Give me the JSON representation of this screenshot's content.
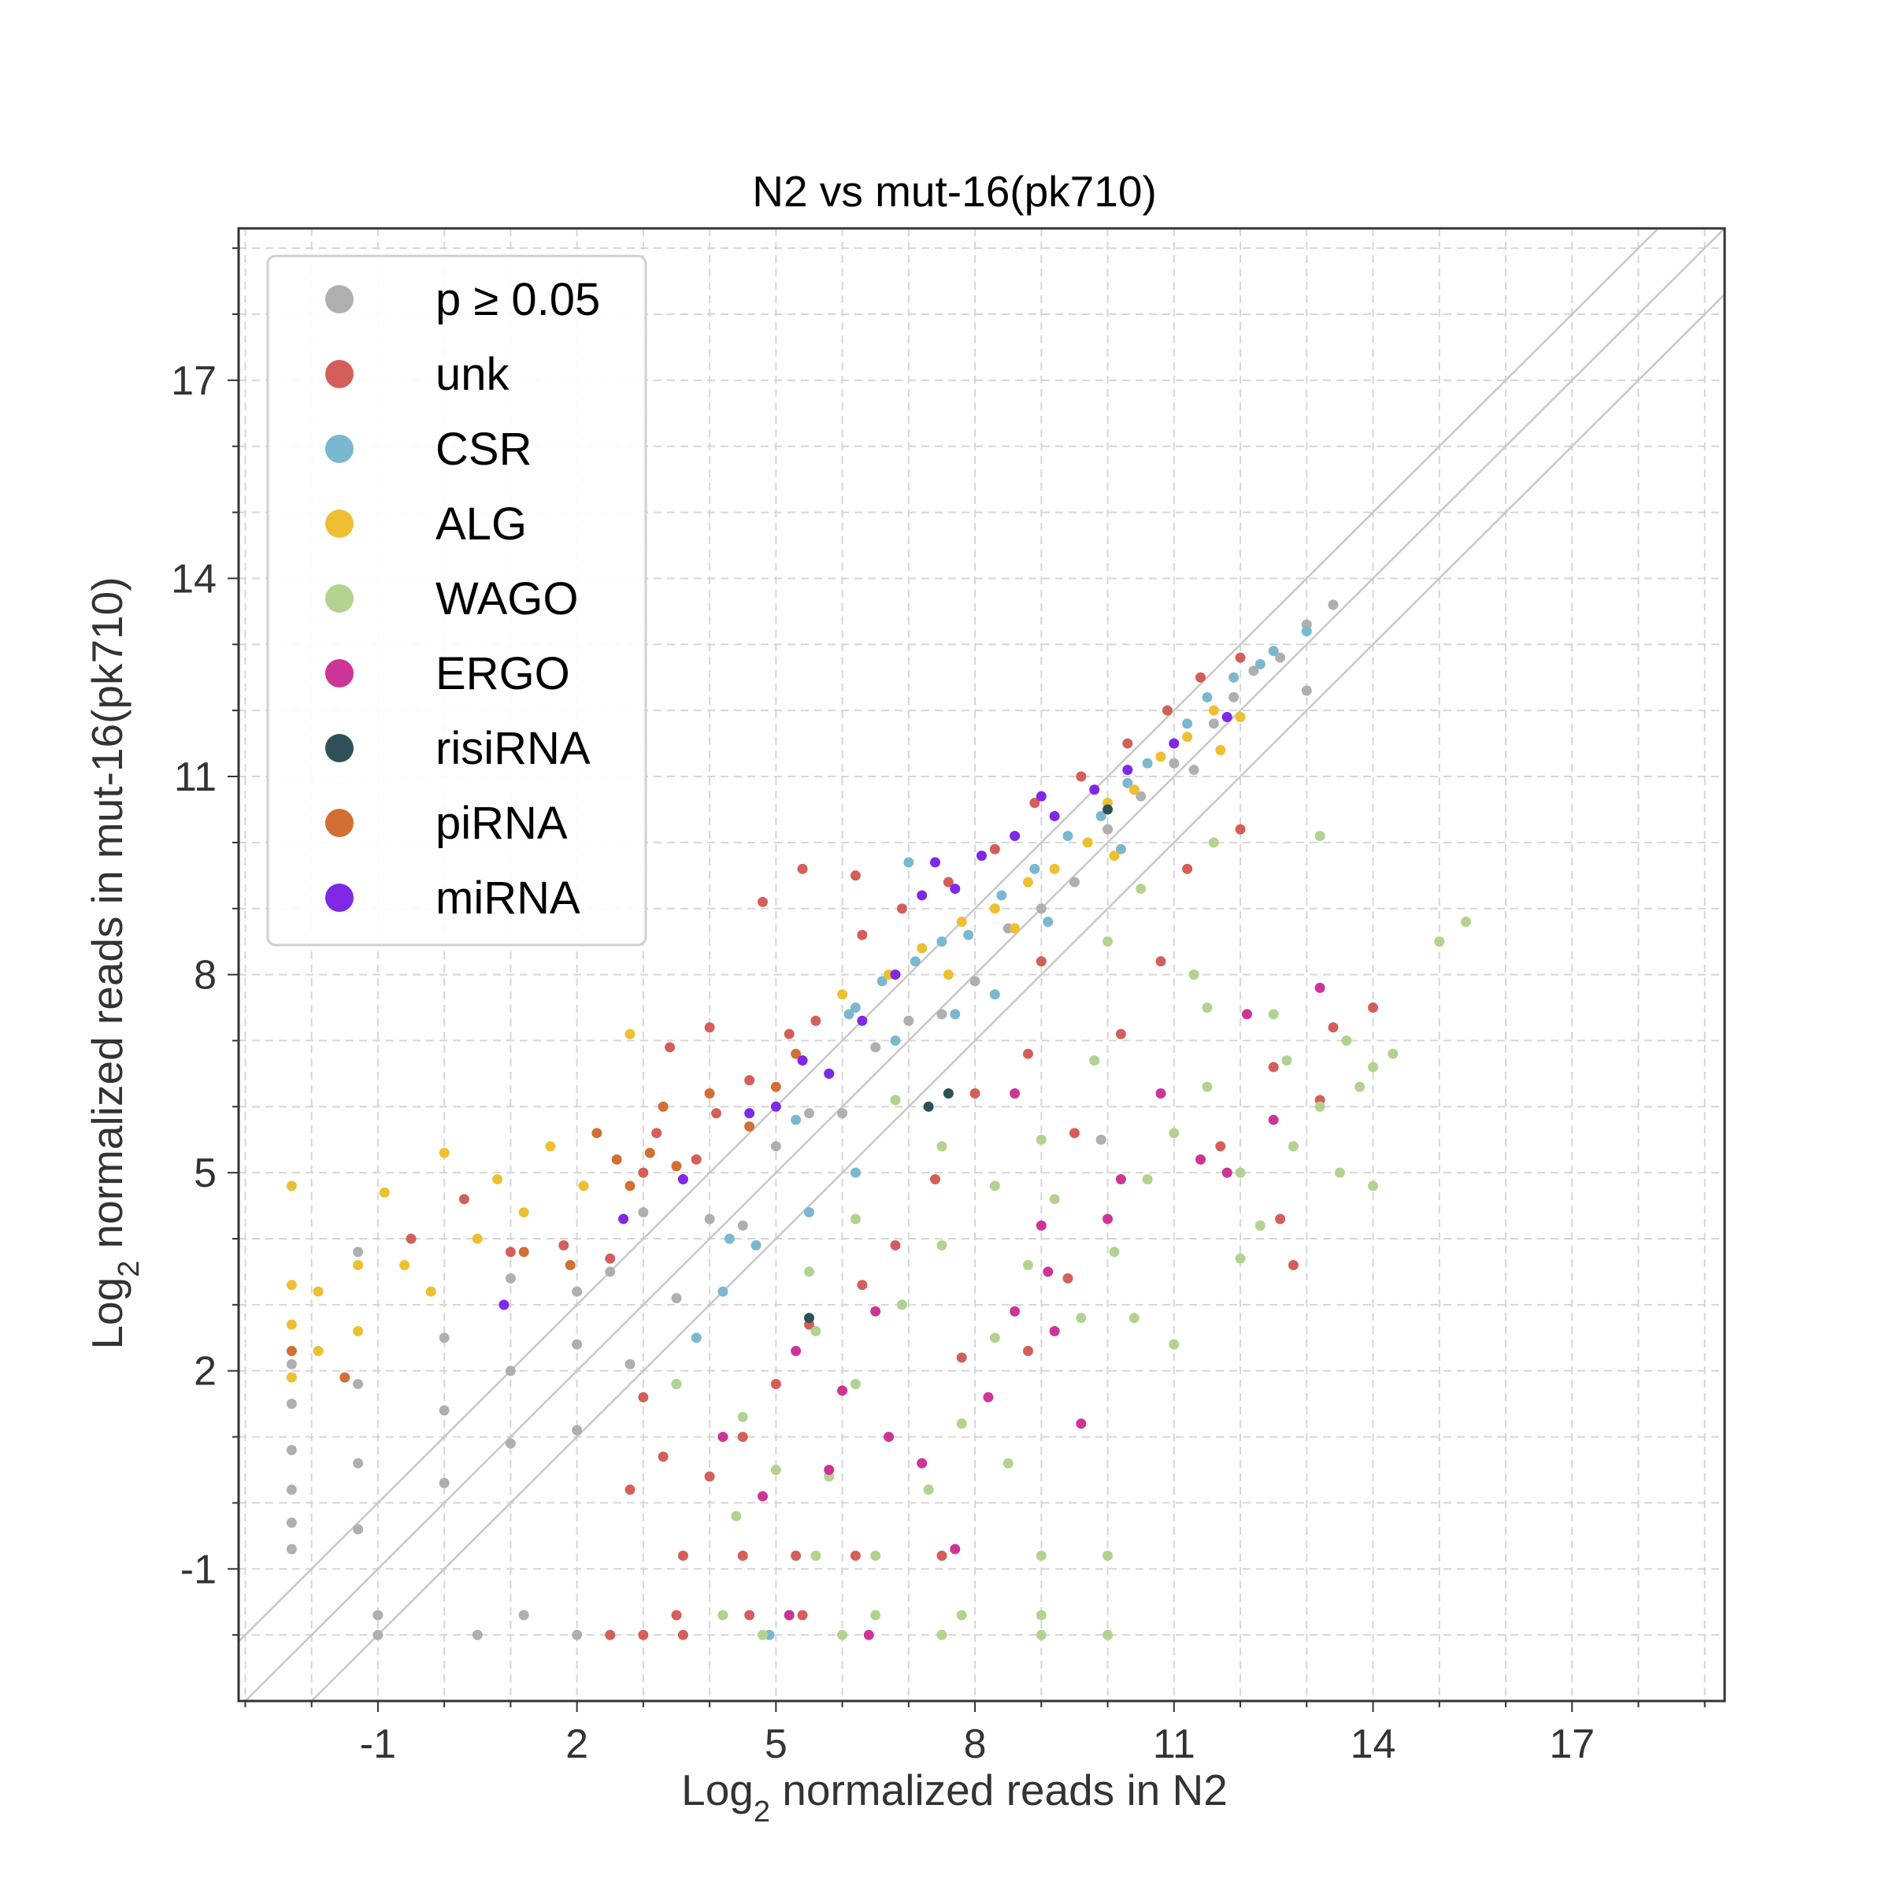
{
  "chart_data": {
    "type": "scatter",
    "title": "N2 vs mut-16(pk710)",
    "xlabel": {
      "prefix": "Log",
      "sub": "2",
      "rest": " normalized reads in N2"
    },
    "ylabel": {
      "prefix": "Log",
      "sub": "2",
      "rest": " normalized reads in mut-16(pk710)"
    },
    "xlim": [
      -3.1,
      19.3
    ],
    "ylim": [
      -3.0,
      19.3
    ],
    "xticks": [
      -1,
      2,
      5,
      8,
      11,
      14,
      17
    ],
    "yticks": [
      -1,
      2,
      5,
      8,
      11,
      14,
      17
    ],
    "grid": true,
    "grid_style": "dashed",
    "minor_ticks": true,
    "legend_position": "upper-left",
    "reference_lines": [
      {
        "slope": 1,
        "intercept": 0
      },
      {
        "slope": 1,
        "intercept": 1
      },
      {
        "slope": 1,
        "intercept": -1
      }
    ],
    "series": [
      {
        "name": "p ≥ 0.05",
        "color": "#afafaf"
      },
      {
        "name": "unk",
        "color": "#d45f5a"
      },
      {
        "name": "CSR",
        "color": "#7ab8cf"
      },
      {
        "name": "ALG",
        "color": "#eebf33"
      },
      {
        "name": "WAGO",
        "color": "#b2d38f"
      },
      {
        "name": "ERGO",
        "color": "#cc3595"
      },
      {
        "name": "risiRNA",
        "color": "#2e5157"
      },
      {
        "name": "piRNA",
        "color": "#d26f34"
      },
      {
        "name": "miRNA",
        "color": "#7f28e6"
      }
    ],
    "points": {
      "p ≥ 0.05": [
        [
          -2.3,
          2.1
        ],
        [
          -2.3,
          1.5
        ],
        [
          -2.3,
          0.8
        ],
        [
          -2.3,
          0.2
        ],
        [
          -2.3,
          -0.3
        ],
        [
          -2.3,
          -0.7
        ],
        [
          -1.3,
          3.8
        ],
        [
          -1.3,
          1.8
        ],
        [
          -1.3,
          0.6
        ],
        [
          -1.3,
          -0.4
        ],
        [
          0.0,
          2.5
        ],
        [
          0.0,
          1.4
        ],
        [
          0.0,
          0.3
        ],
        [
          1.0,
          3.4
        ],
        [
          1.0,
          2.0
        ],
        [
          1.0,
          0.9
        ],
        [
          2.0,
          3.2
        ],
        [
          2.0,
          2.4
        ],
        [
          2.0,
          1.1
        ],
        [
          2.5,
          3.5
        ],
        [
          2.8,
          2.1
        ],
        [
          3.0,
          4.4
        ],
        [
          3.5,
          3.1
        ],
        [
          4.0,
          4.3
        ],
        [
          4.5,
          4.2
        ],
        [
          5.0,
          5.4
        ],
        [
          5.5,
          5.9
        ],
        [
          6.0,
          5.9
        ],
        [
          6.5,
          6.9
        ],
        [
          7.0,
          7.3
        ],
        [
          7.5,
          7.4
        ],
        [
          8.0,
          7.9
        ],
        [
          8.5,
          8.7
        ],
        [
          9.0,
          9.0
        ],
        [
          9.5,
          9.4
        ],
        [
          10.0,
          10.2
        ],
        [
          10.5,
          10.7
        ],
        [
          11.0,
          11.2
        ],
        [
          11.3,
          11.1
        ],
        [
          11.6,
          11.8
        ],
        [
          11.9,
          12.2
        ],
        [
          12.2,
          12.6
        ],
        [
          12.6,
          12.8
        ],
        [
          13.0,
          13.3
        ],
        [
          13.4,
          13.6
        ],
        [
          13.0,
          12.3
        ],
        [
          9.9,
          5.5
        ],
        [
          -1.0,
          -2.0
        ],
        [
          0.5,
          -2.0
        ],
        [
          2.0,
          -2.0
        ],
        [
          -1.0,
          -1.7
        ],
        [
          1.2,
          -1.7
        ]
      ],
      "unk": [
        [
          -0.5,
          4.0
        ],
        [
          0.3,
          4.6
        ],
        [
          1.0,
          3.8
        ],
        [
          1.8,
          3.9
        ],
        [
          2.5,
          3.7
        ],
        [
          3.0,
          5.0
        ],
        [
          3.2,
          5.6
        ],
        [
          3.8,
          5.2
        ],
        [
          4.1,
          5.9
        ],
        [
          4.6,
          6.4
        ],
        [
          5.2,
          7.1
        ],
        [
          5.6,
          7.3
        ],
        [
          6.3,
          8.6
        ],
        [
          6.9,
          9.0
        ],
        [
          7.6,
          9.4
        ],
        [
          8.3,
          9.9
        ],
        [
          8.9,
          10.6
        ],
        [
          9.6,
          11.0
        ],
        [
          10.3,
          11.5
        ],
        [
          10.9,
          12.0
        ],
        [
          11.4,
          12.5
        ],
        [
          12.0,
          12.8
        ],
        [
          5.4,
          9.6
        ],
        [
          4.8,
          9.1
        ],
        [
          6.2,
          9.5
        ],
        [
          4.0,
          7.2
        ],
        [
          3.4,
          6.9
        ],
        [
          6.3,
          3.3
        ],
        [
          5.5,
          2.7
        ],
        [
          5.0,
          1.8
        ],
        [
          4.5,
          1.0
        ],
        [
          4.0,
          0.4
        ],
        [
          3.3,
          0.7
        ],
        [
          3.0,
          1.6
        ],
        [
          2.8,
          0.2
        ],
        [
          3.6,
          -0.8
        ],
        [
          4.5,
          -0.8
        ],
        [
          5.3,
          -0.8
        ],
        [
          6.2,
          -0.8
        ],
        [
          7.5,
          -0.8
        ],
        [
          3.0,
          -2.0
        ],
        [
          3.6,
          -2.0
        ],
        [
          2.5,
          -2.0
        ],
        [
          3.5,
          -1.7
        ],
        [
          4.6,
          -1.7
        ],
        [
          5.4,
          -1.7
        ],
        [
          8.0,
          6.2
        ],
        [
          8.8,
          6.8
        ],
        [
          9.0,
          8.2
        ],
        [
          9.5,
          5.6
        ],
        [
          10.2,
          7.1
        ],
        [
          10.8,
          8.2
        ],
        [
          11.2,
          9.6
        ],
        [
          12.0,
          10.2
        ],
        [
          12.5,
          6.6
        ],
        [
          13.4,
          7.2
        ],
        [
          14.0,
          7.5
        ],
        [
          13.2,
          6.1
        ],
        [
          11.7,
          5.4
        ],
        [
          12.6,
          4.3
        ],
        [
          12.8,
          3.6
        ],
        [
          7.4,
          4.9
        ],
        [
          6.8,
          3.9
        ],
        [
          7.8,
          2.2
        ],
        [
          8.8,
          2.3
        ],
        [
          9.4,
          3.4
        ]
      ],
      "CSR": [
        [
          5.3,
          5.8
        ],
        [
          5.8,
          6.5
        ],
        [
          6.1,
          7.4
        ],
        [
          6.6,
          7.9
        ],
        [
          7.1,
          8.2
        ],
        [
          7.5,
          8.5
        ],
        [
          7.9,
          8.6
        ],
        [
          8.4,
          9.2
        ],
        [
          8.9,
          9.6
        ],
        [
          9.4,
          10.1
        ],
        [
          9.9,
          10.4
        ],
        [
          10.3,
          10.9
        ],
        [
          10.6,
          11.2
        ],
        [
          11.0,
          11.5
        ],
        [
          11.2,
          11.8
        ],
        [
          11.5,
          12.2
        ],
        [
          11.9,
          12.5
        ],
        [
          12.3,
          12.7
        ],
        [
          12.5,
          12.9
        ],
        [
          13.0,
          13.2
        ],
        [
          6.8,
          7.0
        ],
        [
          7.7,
          7.4
        ],
        [
          8.3,
          7.7
        ],
        [
          9.1,
          8.8
        ],
        [
          10.2,
          9.9
        ],
        [
          6.2,
          5.0
        ],
        [
          5.5,
          4.4
        ],
        [
          4.7,
          3.9
        ],
        [
          4.2,
          3.2
        ],
        [
          3.8,
          2.5
        ],
        [
          3.5,
          1.8
        ],
        [
          4.3,
          4.0
        ],
        [
          7.0,
          9.7
        ],
        [
          6.2,
          7.5
        ],
        [
          4.9,
          -2.0
        ]
      ],
      "ALG": [
        [
          -2.3,
          4.8
        ],
        [
          -2.3,
          3.3
        ],
        [
          -2.3,
          2.7
        ],
        [
          -2.3,
          1.9
        ],
        [
          -1.9,
          2.3
        ],
        [
          -1.9,
          3.2
        ],
        [
          -1.3,
          3.6
        ],
        [
          -1.3,
          2.6
        ],
        [
          -0.9,
          4.7
        ],
        [
          -0.6,
          3.6
        ],
        [
          -0.2,
          3.2
        ],
        [
          0.0,
          5.3
        ],
        [
          0.5,
          4.0
        ],
        [
          0.8,
          4.9
        ],
        [
          1.2,
          4.4
        ],
        [
          1.6,
          5.4
        ],
        [
          2.1,
          4.8
        ],
        [
          2.8,
          7.1
        ],
        [
          6.0,
          7.7
        ],
        [
          6.7,
          8.0
        ],
        [
          7.2,
          8.4
        ],
        [
          7.8,
          8.8
        ],
        [
          8.3,
          9.0
        ],
        [
          8.8,
          9.4
        ],
        [
          9.2,
          9.6
        ],
        [
          9.7,
          10.0
        ],
        [
          10.0,
          10.6
        ],
        [
          10.4,
          10.8
        ],
        [
          10.8,
          11.3
        ],
        [
          11.2,
          11.6
        ],
        [
          11.6,
          12.0
        ],
        [
          12.0,
          11.9
        ],
        [
          7.6,
          8.0
        ],
        [
          8.6,
          8.7
        ],
        [
          10.1,
          9.8
        ],
        [
          11.7,
          11.4
        ]
      ],
      "WAGO": [
        [
          3.5,
          1.8
        ],
        [
          4.5,
          1.3
        ],
        [
          5.0,
          0.5
        ],
        [
          5.6,
          2.6
        ],
        [
          6.2,
          1.8
        ],
        [
          6.9,
          3.0
        ],
        [
          7.5,
          3.9
        ],
        [
          7.8,
          1.2
        ],
        [
          8.3,
          2.5
        ],
        [
          8.8,
          3.6
        ],
        [
          9.2,
          4.6
        ],
        [
          9.6,
          2.8
        ],
        [
          10.1,
          3.8
        ],
        [
          10.6,
          4.9
        ],
        [
          11.0,
          5.6
        ],
        [
          11.5,
          6.3
        ],
        [
          12.0,
          5.0
        ],
        [
          12.3,
          4.2
        ],
        [
          12.7,
          6.7
        ],
        [
          13.2,
          6.0
        ],
        [
          13.6,
          7.0
        ],
        [
          14.0,
          6.6
        ],
        [
          14.3,
          6.8
        ],
        [
          15.0,
          8.5
        ],
        [
          15.4,
          8.8
        ],
        [
          12.8,
          5.4
        ],
        [
          13.8,
          6.3
        ],
        [
          14.0,
          4.8
        ],
        [
          13.5,
          5.0
        ],
        [
          10.5,
          9.3
        ],
        [
          10.0,
          8.5
        ],
        [
          11.3,
          8.0
        ],
        [
          9.0,
          5.5
        ],
        [
          8.3,
          4.8
        ],
        [
          7.5,
          5.4
        ],
        [
          6.8,
          6.1
        ],
        [
          6.2,
          4.3
        ],
        [
          5.5,
          3.5
        ],
        [
          4.4,
          -0.2
        ],
        [
          5.8,
          0.4
        ],
        [
          7.3,
          0.2
        ],
        [
          8.5,
          0.6
        ],
        [
          9.0,
          -0.8
        ],
        [
          10.0,
          -0.8
        ],
        [
          5.6,
          -0.8
        ],
        [
          6.5,
          -0.8
        ],
        [
          4.2,
          -1.7
        ],
        [
          5.2,
          -1.7
        ],
        [
          6.5,
          -1.7
        ],
        [
          7.8,
          -1.7
        ],
        [
          9.0,
          -1.7
        ],
        [
          10.0,
          -2.0
        ],
        [
          9.0,
          -2.0
        ],
        [
          7.5,
          -2.0
        ],
        [
          6.0,
          -2.0
        ],
        [
          4.8,
          -2.0
        ],
        [
          11.5,
          7.5
        ],
        [
          12.5,
          7.4
        ],
        [
          13.2,
          10.1
        ],
        [
          11.6,
          10.0
        ],
        [
          9.8,
          6.7
        ],
        [
          10.4,
          2.8
        ],
        [
          11.0,
          2.4
        ],
        [
          12.0,
          3.7
        ]
      ],
      "ERGO": [
        [
          5.3,
          2.3
        ],
        [
          6.0,
          1.7
        ],
        [
          6.5,
          2.9
        ],
        [
          7.2,
          0.6
        ],
        [
          7.7,
          -0.7
        ],
        [
          8.2,
          1.6
        ],
        [
          8.6,
          2.9
        ],
        [
          9.0,
          4.2
        ],
        [
          9.6,
          1.2
        ],
        [
          10.2,
          4.9
        ],
        [
          10.8,
          6.2
        ],
        [
          11.4,
          5.2
        ],
        [
          12.1,
          7.4
        ],
        [
          12.5,
          5.8
        ],
        [
          13.2,
          7.8
        ],
        [
          10.0,
          4.3
        ],
        [
          9.2,
          2.6
        ],
        [
          6.7,
          1.0
        ],
        [
          5.8,
          0.5
        ],
        [
          4.8,
          0.1
        ],
        [
          4.2,
          1.0
        ],
        [
          5.2,
          -1.7
        ],
        [
          6.4,
          -2.0
        ],
        [
          8.6,
          6.2
        ],
        [
          9.1,
          3.5
        ],
        [
          11.8,
          5.0
        ]
      ],
      "risiRNA": [
        [
          5.5,
          2.8
        ],
        [
          7.3,
          6.0
        ],
        [
          10.0,
          10.5
        ],
        [
          7.6,
          6.2
        ]
      ],
      "piRNA": [
        [
          -2.3,
          2.3
        ],
        [
          -1.5,
          1.9
        ],
        [
          1.2,
          3.8
        ],
        [
          2.3,
          5.6
        ],
        [
          2.8,
          4.8
        ],
        [
          3.1,
          5.3
        ],
        [
          3.5,
          5.1
        ],
        [
          4.0,
          6.2
        ],
        [
          4.6,
          5.7
        ],
        [
          5.0,
          6.3
        ],
        [
          5.3,
          6.8
        ],
        [
          1.9,
          3.6
        ],
        [
          2.6,
          5.2
        ],
        [
          3.3,
          6.0
        ]
      ],
      "miRNA": [
        [
          0.9,
          3.0
        ],
        [
          2.7,
          4.3
        ],
        [
          3.6,
          4.9
        ],
        [
          4.6,
          5.9
        ],
        [
          5.0,
          6.0
        ],
        [
          5.4,
          6.7
        ],
        [
          5.8,
          6.5
        ],
        [
          6.3,
          7.3
        ],
        [
          6.8,
          8.0
        ],
        [
          7.2,
          9.2
        ],
        [
          7.7,
          9.3
        ],
        [
          8.1,
          9.8
        ],
        [
          8.6,
          10.1
        ],
        [
          9.2,
          10.4
        ],
        [
          9.8,
          10.8
        ],
        [
          10.3,
          11.1
        ],
        [
          11.0,
          11.5
        ],
        [
          11.8,
          11.9
        ],
        [
          7.4,
          9.7
        ],
        [
          9.0,
          10.7
        ]
      ]
    }
  }
}
